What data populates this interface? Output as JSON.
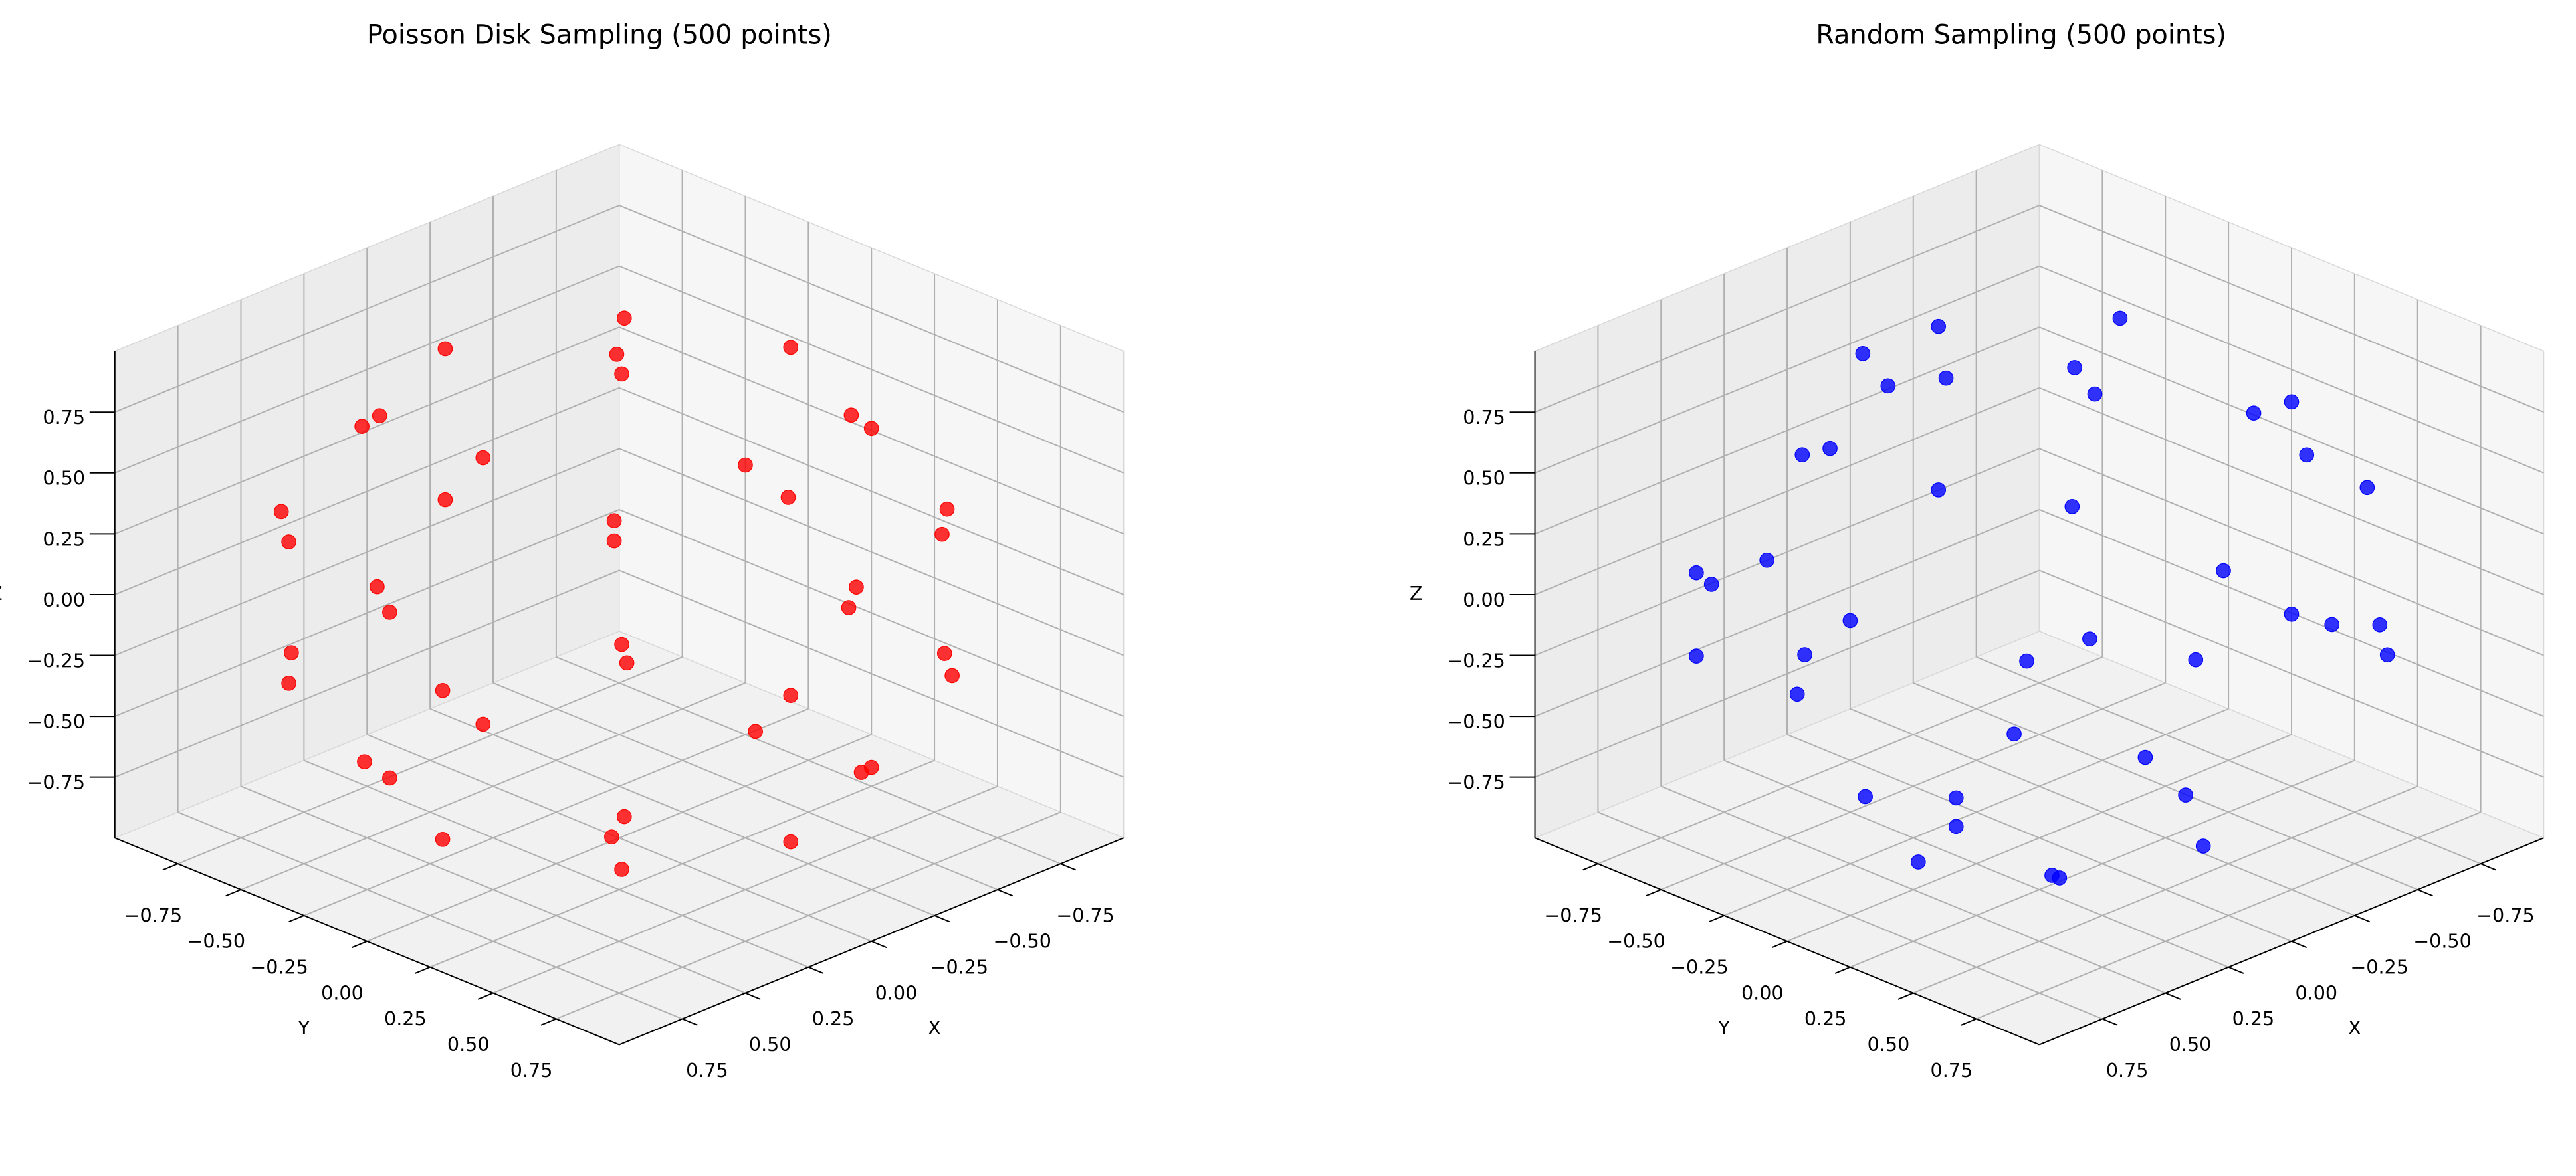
{
  "chart_data": [
    {
      "type": "scatter3d",
      "title": "Poisson Disk Sampling (500 points)",
      "xlabel": "X",
      "ylabel": "Y",
      "zlabel": "Z",
      "color": "#ff0000",
      "xlim": [
        -1,
        1
      ],
      "ylim": [
        -1,
        1
      ],
      "zlim": [
        -1,
        1
      ],
      "xticks": [
        {
          "value": -0.75,
          "label": "−0.75"
        },
        {
          "value": -0.5,
          "label": "−0.50"
        },
        {
          "value": -0.25,
          "label": "−0.25"
        },
        {
          "value": 0,
          "label": "0.00"
        },
        0.25,
        {
          "value": 0.5,
          "label": "0.50"
        },
        0.75
      ],
      "yticks": [
        {
          "value": -0.75,
          "label": "−0.75"
        },
        {
          "value": -0.5,
          "label": "−0.50"
        },
        {
          "value": -0.25,
          "label": "−0.25"
        },
        {
          "value": 0,
          "label": "0.00"
        },
        0.25,
        {
          "value": 0.5,
          "label": "0.50"
        },
        0.75
      ],
      "zticks": [
        {
          "value": -0.75,
          "label": "−0.75"
        },
        {
          "value": -0.5,
          "label": "−0.50"
        },
        {
          "value": -0.25,
          "label": "−0.25"
        },
        {
          "value": 0,
          "label": "0.00"
        },
        0.25,
        {
          "value": 0.5,
          "label": "0.50"
        },
        0.75
      ],
      "x": [
        0.02,
        0.5,
        -0.48,
        0.52,
        -0.5,
        0.71,
        -0.7,
        0.03,
        -0.02,
        0.94,
        0.66,
        0.02,
        -0.64,
        -0.94,
        -0.66,
        0.01,
        0.68,
        0.92,
        0.38,
        -0.36,
        -0.92,
        -0.9,
        -0.38,
        0.4,
        0.92,
        0.93,
        0.64,
        -0.02,
        -0.68,
        -0.93,
        -0.65,
        0.03,
        0.66,
        0.71,
        0.02,
        -0.7,
        -0.01,
        0.5,
        -0.52,
        0.49,
        -0.5,
        0.01
      ],
      "y": [
        0.01,
        0.48,
        0.52,
        -0.5,
        -0.48,
        0.02,
        -0.02,
        0.7,
        -0.71,
        0.03,
        0.67,
        0.93,
        0.66,
        -0.02,
        -0.65,
        -0.94,
        -0.66,
        0.38,
        0.92,
        0.93,
        0.36,
        -0.4,
        -0.92,
        -0.91,
        -0.38,
        0.02,
        0.66,
        0.94,
        0.64,
        0.01,
        -0.67,
        -0.93,
        -0.65,
        0.01,
        0.7,
        -0.02,
        -0.71,
        0.51,
        -0.49,
        -0.52,
        0.5,
        -0.02
      ],
      "z": [
        1.0,
        0.72,
        0.7,
        0.7,
        0.72,
        0.7,
        0.71,
        0.71,
        0.7,
        0.34,
        0.36,
        0.35,
        0.36,
        0.33,
        0.35,
        0.34,
        0.35,
        0.02,
        -0.01,
        0.0,
        0.01,
        -0.02,
        0.01,
        0.0,
        -0.01,
        -0.35,
        -0.36,
        -0.34,
        -0.35,
        -0.36,
        -0.34,
        -0.35,
        -0.36,
        -0.7,
        -0.71,
        -0.72,
        -0.7,
        -0.7,
        -0.71,
        -0.7,
        -0.71,
        -1.0
      ]
    },
    {
      "type": "scatter3d",
      "title": "Random Sampling (500 points)",
      "xlabel": "X",
      "ylabel": "Y",
      "zlabel": "Z",
      "color": "#0000ff",
      "xlim": [
        -1,
        1
      ],
      "ylim": [
        -1,
        1
      ],
      "zlim": [
        -1,
        1
      ],
      "xticks": [
        {
          "value": -0.75,
          "label": "−0.75"
        },
        {
          "value": -0.5,
          "label": "−0.50"
        },
        {
          "value": -0.25,
          "label": "−0.25"
        },
        {
          "value": 0,
          "label": "0.00"
        },
        0.25,
        {
          "value": 0.5,
          "label": "0.50"
        },
        0.75
      ],
      "yticks": [
        {
          "value": -0.75,
          "label": "−0.75"
        },
        {
          "value": -0.5,
          "label": "−0.50"
        },
        {
          "value": -0.25,
          "label": "−0.25"
        },
        {
          "value": 0,
          "label": "0.00"
        },
        0.25,
        {
          "value": 0.5,
          "label": "0.50"
        },
        0.75
      ],
      "zticks": [
        {
          "value": -0.75,
          "label": "−0.75"
        },
        {
          "value": -0.5,
          "label": "−0.50"
        },
        {
          "value": -0.25,
          "label": "−0.25"
        },
        {
          "value": 0,
          "label": "0.00"
        },
        0.25,
        {
          "value": 0.5,
          "label": "0.50"
        },
        0.75
      ],
      "x": [
        0.12,
        0.63,
        -0.44,
        0.91,
        -0.15,
        0.33,
        -0.72,
        0.05,
        0.81,
        -0.9,
        0.46,
        -0.3,
        0.22,
        -0.61,
        0.98,
        -0.05,
        0.7,
        -0.52,
        0.35,
        -0.85,
        0.58,
        -0.2,
        0.15,
        -0.75,
        0.4,
        -0.38,
        0.78,
        -0.1,
        0.55,
        -0.95,
        0.25,
        0.66,
        -0.62,
        0.03,
        0.88,
        -0.45,
        0.3,
        -0.8,
        0.6,
        -0.25
      ],
      "y": [
        0.85,
        -0.31,
        0.62,
        0.22,
        -0.98,
        0.41,
        -0.58,
        0.27,
        -0.55,
        0.1,
        0.88,
        -0.4,
        -0.74,
        0.77,
        0.05,
        0.6,
        0.65,
        -0.2,
        -0.25,
        0.45,
        0.1,
        0.96,
        -0.55,
        -0.62,
        -0.9,
        0.2,
        0.45,
        -0.85,
        0.75,
        -0.1,
        0.3,
        -0.7,
        0.38,
        -0.3,
        -0.2,
        -0.82,
        0.92,
        0.55,
        0.2,
        -0.65
      ],
      "z": [
        0.51,
        0.71,
        0.65,
        -0.35,
        0.12,
        -0.85,
        0.38,
        0.96,
        0.2,
        -0.42,
        -0.1,
        -0.87,
        -0.63,
        -0.18,
        0.19,
        -0.8,
        0.3,
        0.83,
        0.9,
        0.27,
        -0.81,
        0.2,
        0.82,
        -0.22,
        -0.17,
        -0.9,
        -0.43,
        -0.51,
        0.37,
        0.3,
        -0.92,
        -0.27,
        0.69,
        -0.95,
        0.43,
        0.35,
        0.25,
        -0.23,
        0.77,
        0.72
      ]
    }
  ]
}
